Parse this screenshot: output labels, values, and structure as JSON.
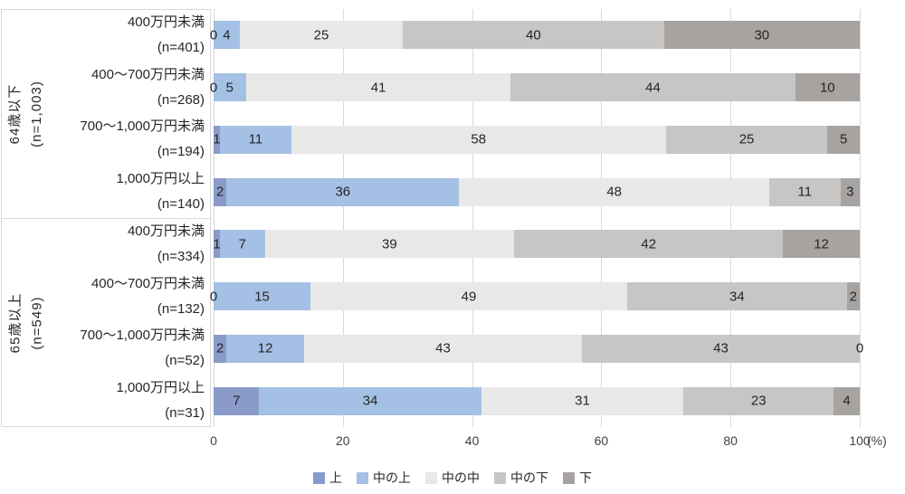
{
  "chart_data": {
    "type": "bar",
    "subtype": "horizontal-stacked-100pct",
    "unit_label": "(%)",
    "x_axis": {
      "ticks": [
        0,
        20,
        40,
        60,
        80,
        100
      ],
      "range": [
        0,
        100
      ],
      "grid": true
    },
    "legend_position": "bottom-center",
    "series_names": [
      "上",
      "中の上",
      "中の中",
      "中の下",
      "下"
    ],
    "series_colors": [
      "#8a9bca",
      "#a4c0e4",
      "#e9e8e8",
      "#c8c6c5",
      "#a6a3a1"
    ],
    "groups": [
      {
        "label": "64歳以下",
        "n_label": "(n=1,003)",
        "rows": [
          {
            "label": "400万円未満",
            "n_label": "(n=401)",
            "values": [
              0,
              4,
              25,
              40,
              30
            ]
          },
          {
            "label": "400〜700万円未満",
            "n_label": "(n=268)",
            "values": [
              0,
              5,
              41,
              44,
              10
            ]
          },
          {
            "label": "700〜1,000万円未満",
            "n_label": "(n=194)",
            "values": [
              1,
              11,
              58,
              25,
              5
            ]
          },
          {
            "label": "1,000万円以上",
            "n_label": "(n=140)",
            "values": [
              2,
              36,
              48,
              11,
              3
            ]
          }
        ]
      },
      {
        "label": "65歳以上",
        "n_label": "(n=549)",
        "rows": [
          {
            "label": "400万円未満",
            "n_label": "(n=334)",
            "values": [
              1,
              7,
              39,
              42,
              12
            ]
          },
          {
            "label": "400〜700万円未満",
            "n_label": "(n=132)",
            "values": [
              0,
              15,
              49,
              34,
              2
            ]
          },
          {
            "label": "700〜1,000万円未満",
            "n_label": "(n=52)",
            "values": [
              2,
              12,
              43,
              43,
              0
            ]
          },
          {
            "label": "1,000万円以上",
            "n_label": "(n=31)",
            "values": [
              7,
              34,
              31,
              23,
              4
            ]
          }
        ]
      }
    ],
    "colors": {
      "gridline": "#d9d9d9",
      "label_box_border": "#d9d9d9",
      "text": "#262626",
      "axis_text": "#404040"
    }
  }
}
